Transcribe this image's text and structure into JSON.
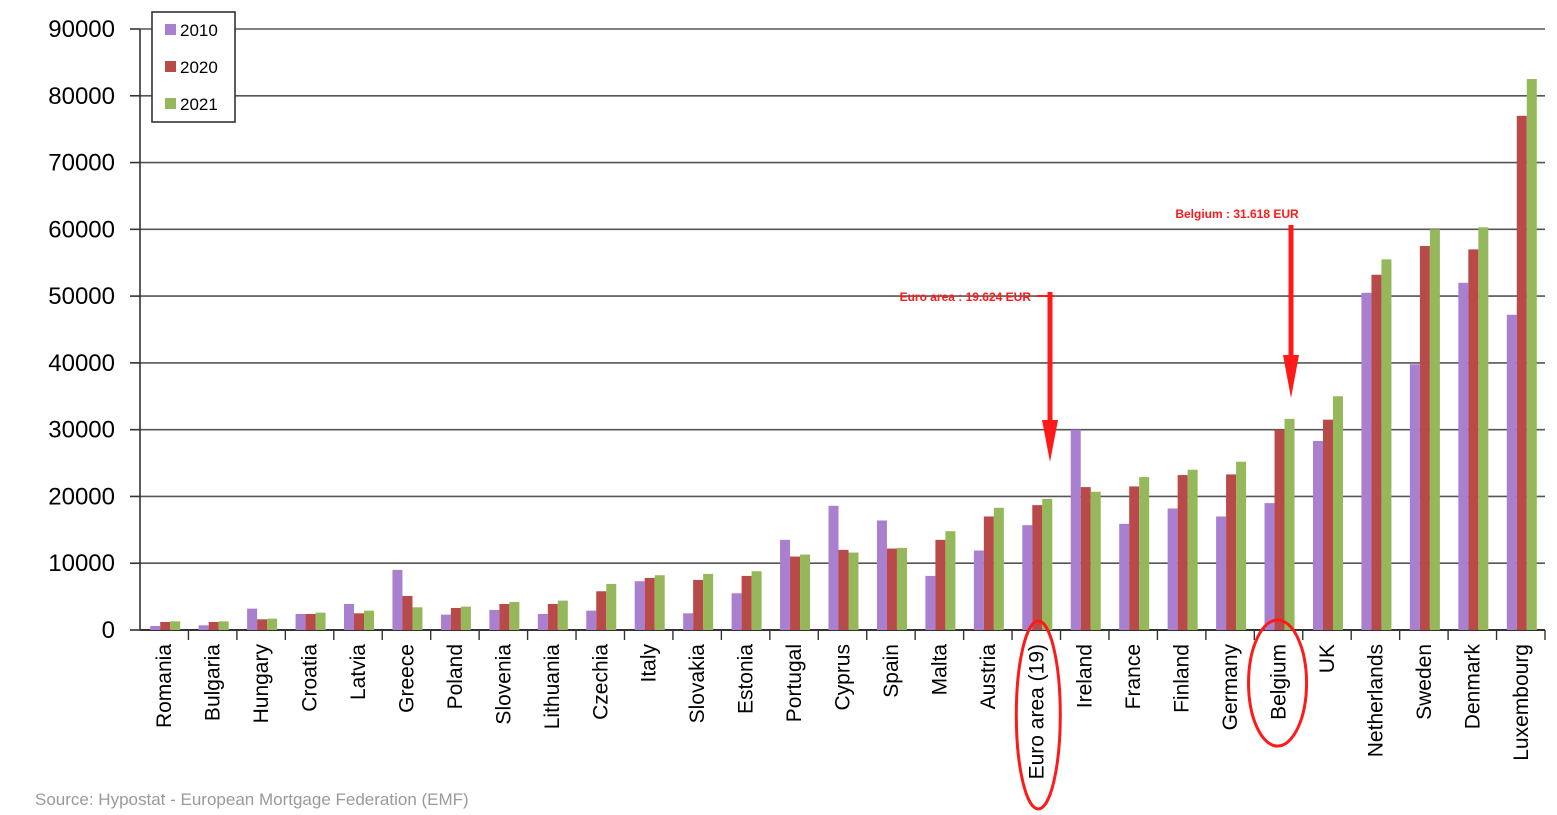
{
  "source": "Source: Hypostat - European Mortgage Federation (EMF)",
  "colors": {
    "2010": "#a97fd0",
    "2020": "#b84a4a",
    "2021": "#94b85a",
    "annotation": "#ff1a1a",
    "grid": "#555555"
  },
  "chart_data": {
    "type": "bar",
    "ylim": [
      0,
      90000
    ],
    "yticks": [
      0,
      10000,
      20000,
      30000,
      40000,
      50000,
      60000,
      70000,
      80000,
      90000
    ],
    "grid": true,
    "legend_position": "top-left",
    "categories": [
      "Romania",
      "Bulgaria",
      "Hungary",
      "Croatia",
      "Latvia",
      "Greece",
      "Poland",
      "Slovenia",
      "Lithuania",
      "Czechia",
      "Italy",
      "Slovakia",
      "Estonia",
      "Portugal",
      "Cyprus",
      "Spain",
      "Malta",
      "Austria",
      "Euro area (19)",
      "Ireland",
      "France",
      "Finland",
      "Germany",
      "Belgium",
      "UK",
      "Netherlands",
      "Sweden",
      "Denmark",
      "Luxembourg"
    ],
    "series": [
      {
        "name": "2010",
        "color": "#a97fd0",
        "values": [
          600,
          700,
          3200,
          2400,
          3900,
          9000,
          2300,
          3000,
          2400,
          2900,
          7300,
          2500,
          5500,
          13500,
          18600,
          16400,
          8100,
          11900,
          15700,
          30000,
          15900,
          18200,
          17000,
          19000,
          28300,
          50500,
          39800,
          52000,
          47200
        ]
      },
      {
        "name": "2020",
        "color": "#b84a4a",
        "values": [
          1200,
          1200,
          1600,
          2400,
          2500,
          5100,
          3300,
          3900,
          3900,
          5800,
          7800,
          7500,
          8100,
          11000,
          12000,
          12200,
          13500,
          17000,
          18700,
          21400,
          21500,
          23200,
          23300,
          30000,
          31500,
          53200,
          57500,
          57000,
          77000
        ]
      },
      {
        "name": "2021",
        "color": "#94b85a",
        "values": [
          1300,
          1300,
          1700,
          2600,
          2900,
          3400,
          3500,
          4200,
          4400,
          6900,
          8200,
          8400,
          8800,
          11300,
          11600,
          12300,
          14800,
          18300,
          19624,
          20700,
          22900,
          24000,
          25200,
          31618,
          35000,
          55500,
          60000,
          60300,
          82500
        ]
      }
    ],
    "annotations": [
      {
        "text": "Euro area : 19.624 EUR",
        "target": "Euro area (19)",
        "value": 19624
      },
      {
        "text": "Belgium : 31.618 EUR",
        "target": "Belgium",
        "value": 31618
      }
    ],
    "highlighted": [
      "Euro area (19)",
      "Belgium"
    ]
  }
}
